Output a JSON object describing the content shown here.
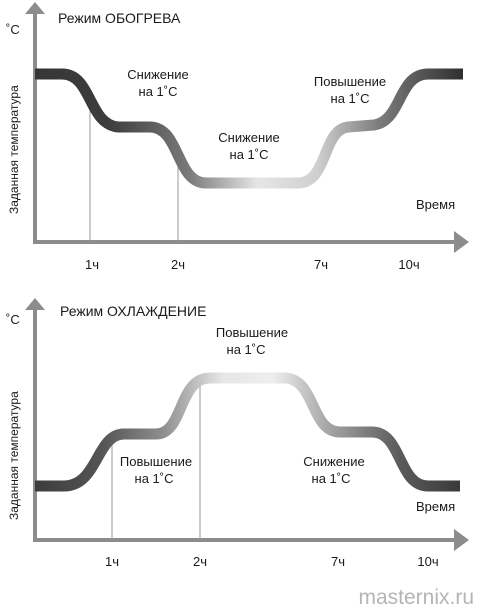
{
  "heating": {
    "title": "Режим ОБОГРЕВА",
    "unit": "˚C",
    "y_label": "Заданная температура",
    "x_label": "Время",
    "ticks": [
      "1ч",
      "2ч",
      "7ч",
      "10ч"
    ],
    "annotations": [
      {
        "line1": "Снижение",
        "line2": "на 1˚C"
      },
      {
        "line1": "Снижение",
        "line2": "на 1˚C"
      },
      {
        "line1": "Повышение",
        "line2": "на 1˚C"
      }
    ]
  },
  "cooling": {
    "title": "Режим ОХЛАЖДЕНИЕ",
    "unit": "˚C",
    "y_label": "Заданная температура",
    "x_label": "Время",
    "ticks": [
      "1ч",
      "2ч",
      "7ч",
      "10ч"
    ],
    "annotations": [
      {
        "line1": "Повышение",
        "line2": "на 1˚C"
      },
      {
        "line1": "Повышение",
        "line2": "на 1˚C"
      },
      {
        "line1": "Снижение",
        "line2": "на 1˚C"
      }
    ]
  },
  "footer": {
    "watermark": "masternix.ru"
  },
  "colors": {
    "curve_dark": "#3a3a3a",
    "curve_mid": "#8a8a8a",
    "curve_light": "#e6e6e6",
    "axis": "#8c8c8c"
  }
}
